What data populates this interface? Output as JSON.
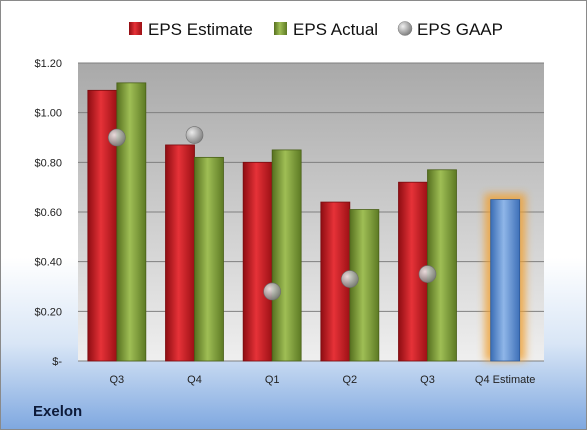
{
  "company": "Exelon",
  "colors": {
    "estimate": "#c8191e",
    "actual": "#7a9a33",
    "gaap": "#a9a9a9",
    "q4_estimate": "#5b8fd2",
    "q4_glow": "#f0a030"
  },
  "chart_data": {
    "type": "bar",
    "categories": [
      "Q3",
      "Q4",
      "Q1",
      "Q2",
      "Q3",
      "Q4 Estimate"
    ],
    "series": [
      {
        "name": "EPS Estimate",
        "values": [
          1.09,
          0.87,
          0.8,
          0.64,
          0.72,
          null
        ]
      },
      {
        "name": "EPS Actual",
        "values": [
          1.12,
          0.82,
          0.85,
          0.61,
          0.77,
          null
        ]
      },
      {
        "name": "EPS GAAP",
        "values": [
          0.9,
          0.91,
          0.28,
          0.33,
          0.35,
          null
        ],
        "marker": "circle"
      }
    ],
    "forecast": {
      "category": "Q4 Estimate",
      "value": 0.65
    },
    "y_ticks": [
      "$-",
      "$0.20",
      "$0.40",
      "$0.60",
      "$0.80",
      "$1.00",
      "$1.20"
    ],
    "ylim": [
      0,
      1.2
    ],
    "grid": true,
    "legend_position": "top"
  }
}
